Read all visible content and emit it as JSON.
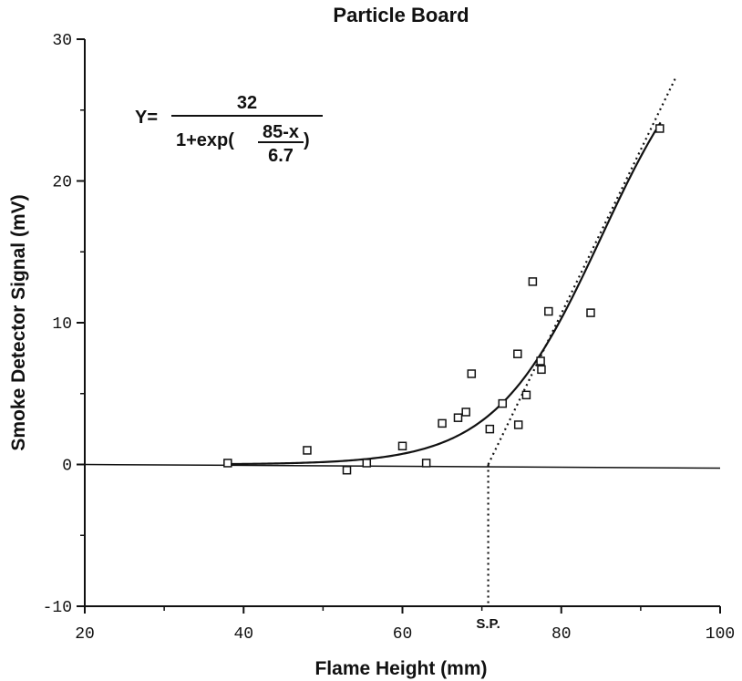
{
  "chart_data": {
    "type": "scatter",
    "title": "Particle Board",
    "xlabel": "Flame Height (mm)",
    "ylabel": "Smoke Detector Signal (mV)",
    "xlim": [
      20,
      100
    ],
    "ylim": [
      -10,
      30
    ],
    "x_ticks": [
      "20",
      "40",
      "60",
      "80",
      "100"
    ],
    "y_ticks": [
      "-10",
      "0",
      "10",
      "20",
      "30"
    ],
    "grid": false,
    "points": [
      {
        "x": 38,
        "y": 0.1
      },
      {
        "x": 48,
        "y": 1.0
      },
      {
        "x": 53,
        "y": -0.4
      },
      {
        "x": 55.5,
        "y": 0.1
      },
      {
        "x": 60,
        "y": 1.3
      },
      {
        "x": 63,
        "y": 0.1
      },
      {
        "x": 65,
        "y": 2.9
      },
      {
        "x": 67,
        "y": 3.3
      },
      {
        "x": 68,
        "y": 3.7
      },
      {
        "x": 68.7,
        "y": 6.4
      },
      {
        "x": 71,
        "y": 2.5
      },
      {
        "x": 72.6,
        "y": 4.3
      },
      {
        "x": 74.5,
        "y": 7.8
      },
      {
        "x": 74.6,
        "y": 2.8
      },
      {
        "x": 75.6,
        "y": 4.9
      },
      {
        "x": 76.4,
        "y": 12.9
      },
      {
        "x": 77.4,
        "y": 7.3
      },
      {
        "x": 77.5,
        "y": 6.7
      },
      {
        "x": 78.4,
        "y": 10.8
      },
      {
        "x": 83.7,
        "y": 10.7
      },
      {
        "x": 92.4,
        "y": 23.7
      }
    ],
    "fit_curve": {
      "amplitude": 32,
      "center": 85,
      "scale": 6.7,
      "x_range": [
        38,
        92.5
      ]
    },
    "tangent_line": {
      "x": [
        70.8,
        94.5
      ],
      "y": [
        0,
        27.4
      ]
    },
    "sp_marker": {
      "x": 70.8,
      "label": "S.P."
    },
    "equation": {
      "lhs": "Y=",
      "numerator": "32",
      "denominator_prefix": "1+exp(",
      "inner_numerator": "85-x",
      "inner_denominator": "6.7",
      "denominator_suffix": ")"
    }
  }
}
